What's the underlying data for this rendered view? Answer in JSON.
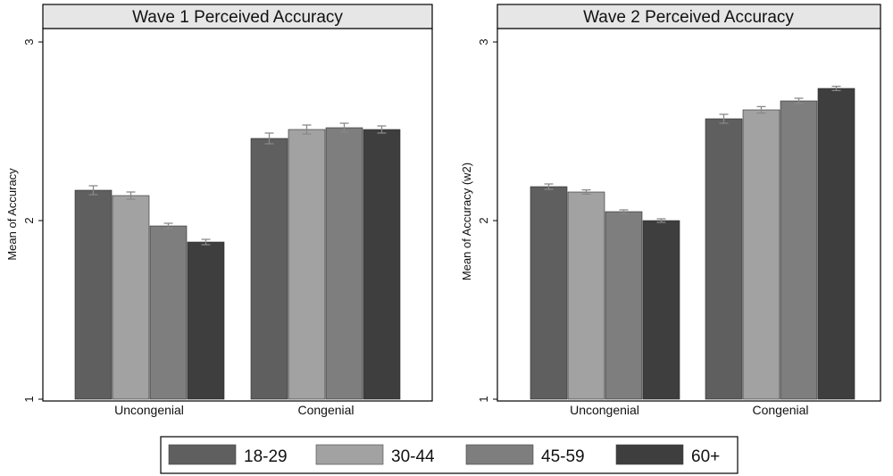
{
  "chart_data": [
    {
      "type": "bar",
      "title": "Wave 1 Perceived Accuracy",
      "ylabel": "Mean of Accuracy",
      "xlabel": "",
      "ylim": [
        1,
        3
      ],
      "yticks": [
        "1",
        "2",
        "3"
      ],
      "categories": [
        "Uncongenial",
        "Congenial"
      ],
      "series": [
        {
          "name": "18-29",
          "values": [
            2.17,
            2.46
          ],
          "errors": [
            0.025,
            0.03
          ]
        },
        {
          "name": "30-44",
          "values": [
            2.14,
            2.51
          ],
          "errors": [
            0.02,
            0.025
          ]
        },
        {
          "name": "45-59",
          "values": [
            1.97,
            2.52
          ],
          "errors": [
            0.015,
            0.025
          ]
        },
        {
          "name": "60+",
          "values": [
            1.88,
            2.51
          ],
          "errors": [
            0.015,
            0.02
          ]
        }
      ]
    },
    {
      "type": "bar",
      "title": "Wave 2 Perceived Accuracy",
      "ylabel": "Mean of Accuracy (w2)",
      "xlabel": "",
      "ylim": [
        1,
        3
      ],
      "yticks": [
        "1",
        "2",
        "3"
      ],
      "categories": [
        "Uncongenial",
        "Congenial"
      ],
      "series": [
        {
          "name": "18-29",
          "values": [
            2.19,
            2.57
          ],
          "errors": [
            0.015,
            0.025
          ]
        },
        {
          "name": "30-44",
          "values": [
            2.16,
            2.62
          ],
          "errors": [
            0.012,
            0.018
          ]
        },
        {
          "name": "45-59",
          "values": [
            2.05,
            2.67
          ],
          "errors": [
            0.01,
            0.015
          ]
        },
        {
          "name": "60+",
          "values": [
            2.0,
            2.74
          ],
          "errors": [
            0.01,
            0.012
          ]
        }
      ]
    }
  ],
  "legend": {
    "items": [
      {
        "label": "18-29",
        "color": "#5f5f5f"
      },
      {
        "label": "30-44",
        "color": "#a2a2a2"
      },
      {
        "label": "45-59",
        "color": "#7e7e7e"
      },
      {
        "label": "60+",
        "color": "#3e3e3e"
      }
    ]
  }
}
